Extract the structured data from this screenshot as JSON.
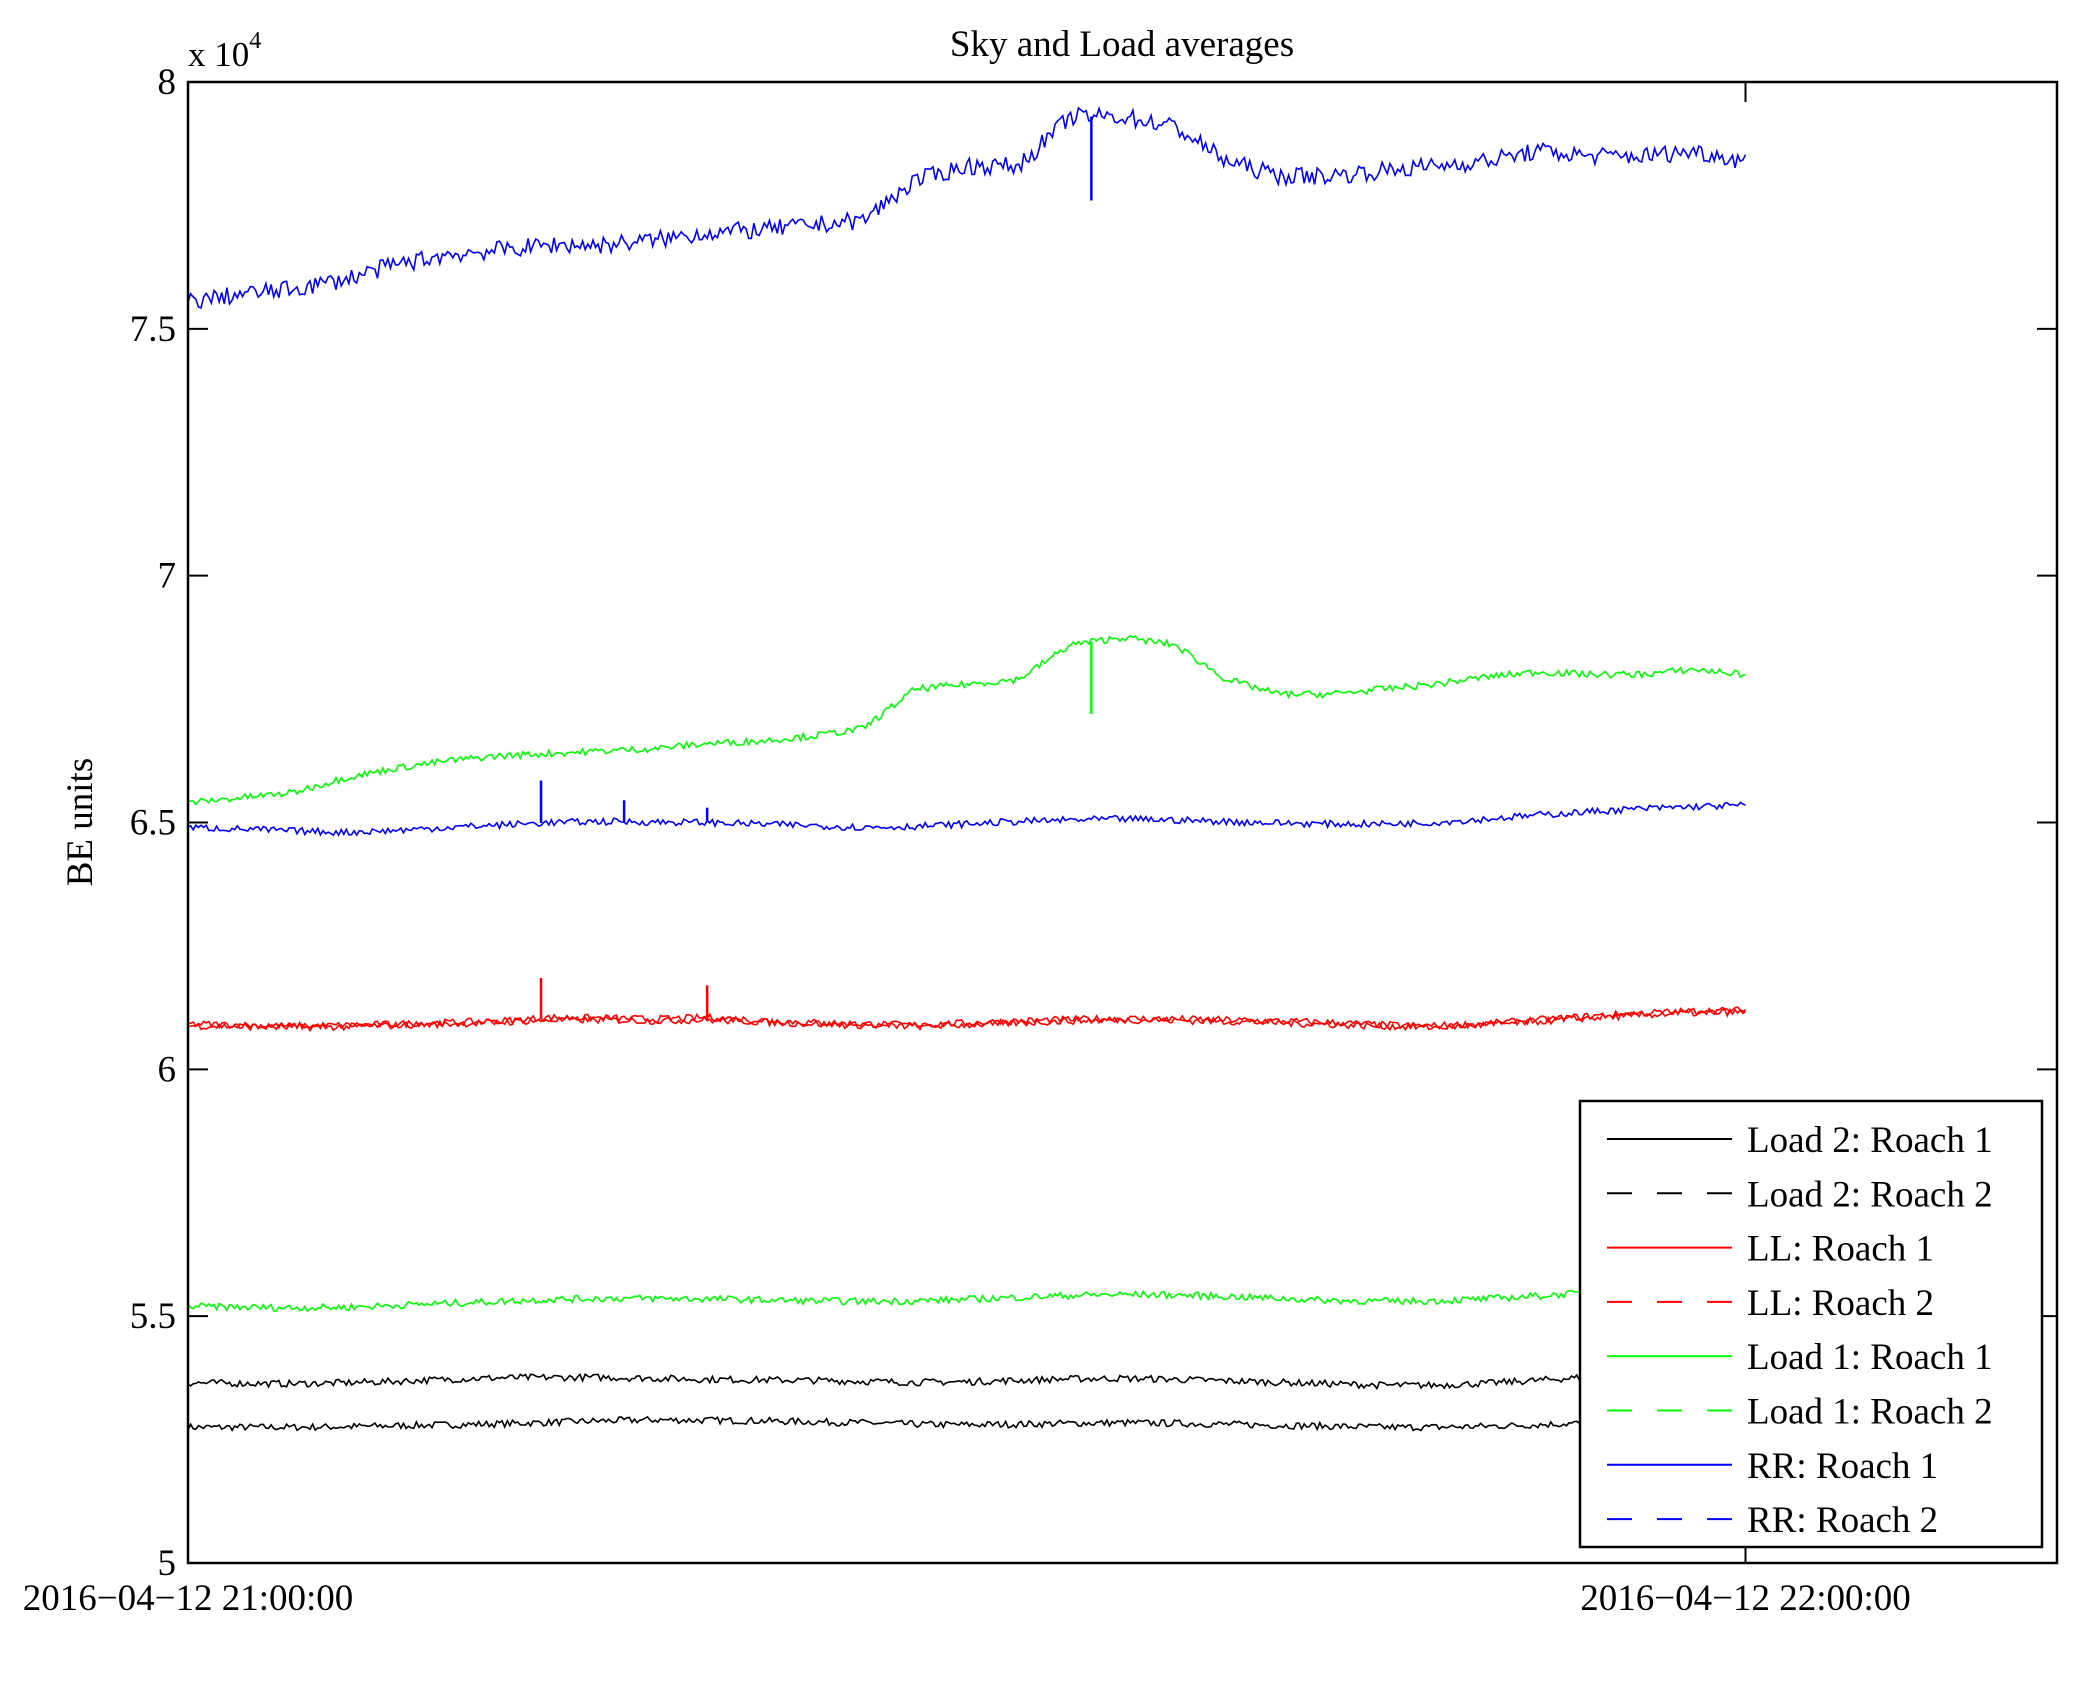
{
  "chart_data": {
    "type": "line",
    "title": "Sky and Load averages",
    "xlabel": "",
    "ylabel": "BE units",
    "y_multiplier_label": "x 10",
    "y_multiplier_exponent": "4",
    "ylim": [
      5,
      8
    ],
    "yticks": [
      5,
      5.5,
      6,
      6.5,
      7,
      7.5,
      8
    ],
    "ytick_labels": [
      "5",
      "5.5",
      "6",
      "6.5",
      "7",
      "7.5",
      "8"
    ],
    "x_unit": "minutes since 2016-04-12 21:00:00",
    "xlim": [
      0,
      72
    ],
    "xticks": [
      0,
      60
    ],
    "xtick_labels": [
      "2016−04−12 21:00:00",
      "2016−04−12 22:00:00"
    ],
    "legend_position": "bottom-right",
    "grid": false,
    "x": [
      0,
      2,
      4,
      6,
      8,
      10,
      12,
      14,
      16,
      18,
      20,
      22,
      24,
      26,
      28,
      30,
      32,
      34,
      36,
      38,
      40,
      42,
      44,
      46,
      48,
      50,
      52,
      54,
      56,
      58,
      60
    ],
    "series": [
      {
        "name": "Load 2: Roach 1",
        "color": "#000000",
        "dash": false,
        "values": [
          5.275,
          5.275,
          5.275,
          5.276,
          5.278,
          5.28,
          5.282,
          5.285,
          5.288,
          5.29,
          5.289,
          5.288,
          5.286,
          5.284,
          5.281,
          5.28,
          5.281,
          5.283,
          5.284,
          5.283,
          5.281,
          5.279,
          5.277,
          5.275,
          5.275,
          5.277,
          5.28,
          5.284,
          5.287,
          5.289,
          5.29
        ]
      },
      {
        "name": "Load 2: Roach 2",
        "color": "#000000",
        "dash": true,
        "values": [
          5.365,
          5.364,
          5.363,
          5.365,
          5.368,
          5.372,
          5.375,
          5.376,
          5.376,
          5.374,
          5.372,
          5.371,
          5.37,
          5.368,
          5.366,
          5.367,
          5.37,
          5.373,
          5.374,
          5.372,
          5.369,
          5.366,
          5.363,
          5.36,
          5.36,
          5.364,
          5.37,
          5.377,
          5.381,
          5.382,
          5.382
        ]
      },
      {
        "name": "LL: Roach 1",
        "color": "#ff0000",
        "dash": false,
        "values": [
          6.092,
          6.09,
          6.088,
          6.089,
          6.092,
          6.095,
          6.098,
          6.105,
          6.104,
          6.102,
          6.105,
          6.1,
          6.095,
          6.092,
          6.09,
          6.094,
          6.098,
          6.101,
          6.103,
          6.102,
          6.1,
          6.098,
          6.095,
          6.09,
          6.088,
          6.093,
          6.1,
          6.108,
          6.114,
          6.118,
          6.12
        ]
      },
      {
        "name": "LL: Roach 2",
        "color": "#ff0000",
        "dash": true,
        "values": [
          6.088,
          6.087,
          6.085,
          6.086,
          6.089,
          6.092,
          6.095,
          6.1,
          6.1,
          6.098,
          6.1,
          6.096,
          6.092,
          6.089,
          6.087,
          6.09,
          6.094,
          6.098,
          6.1,
          6.099,
          6.097,
          6.094,
          6.091,
          6.087,
          6.085,
          6.09,
          6.097,
          6.104,
          6.11,
          6.114,
          6.116
        ]
      },
      {
        "name": "Load 1: Roach 1",
        "color": "#00ff00",
        "dash": false,
        "values": [
          5.52,
          5.518,
          5.517,
          5.518,
          5.522,
          5.526,
          5.53,
          5.534,
          5.536,
          5.536,
          5.535,
          5.533,
          5.531,
          5.53,
          5.531,
          5.534,
          5.538,
          5.542,
          5.544,
          5.543,
          5.54,
          5.536,
          5.532,
          5.53,
          5.531,
          5.535,
          5.541,
          5.548,
          5.554,
          5.558,
          5.56
        ]
      },
      {
        "name": "Load 1: Roach 2",
        "color": "#00ff00",
        "dash": true,
        "values": [
          6.54,
          6.55,
          6.56,
          6.59,
          6.61,
          6.625,
          6.635,
          6.64,
          6.645,
          6.65,
          6.66,
          6.665,
          6.675,
          6.69,
          6.77,
          6.78,
          6.79,
          6.86,
          6.875,
          6.86,
          6.79,
          6.76,
          6.76,
          6.77,
          6.78,
          6.795,
          6.805,
          6.8,
          6.8,
          6.81,
          6.8
        ]
      },
      {
        "name": "RR: Roach 1",
        "color": "#0000ff",
        "dash": false,
        "values": [
          6.49,
          6.487,
          6.483,
          6.48,
          6.484,
          6.49,
          6.495,
          6.5,
          6.502,
          6.501,
          6.5,
          6.497,
          6.494,
          6.49,
          6.492,
          6.497,
          6.502,
          6.505,
          6.507,
          6.505,
          6.502,
          6.499,
          6.497,
          6.497,
          6.5,
          6.507,
          6.515,
          6.522,
          6.528,
          6.532,
          6.535
        ]
      },
      {
        "name": "RR: Roach 2",
        "color": "#0000ff",
        "dash": true,
        "values": [
          7.555,
          7.57,
          7.58,
          7.6,
          7.63,
          7.65,
          7.66,
          7.67,
          7.67,
          7.68,
          7.695,
          7.7,
          7.71,
          7.72,
          7.8,
          7.83,
          7.83,
          7.93,
          7.93,
          7.91,
          7.84,
          7.81,
          7.81,
          7.82,
          7.83,
          7.84,
          7.86,
          7.85,
          7.85,
          7.86,
          7.84
        ]
      }
    ],
    "spikes": [
      {
        "series": "RR: Roach 1",
        "x": 13.6,
        "value": 6.585
      },
      {
        "series": "RR: Roach 1",
        "x": 16.8,
        "value": 6.545
      },
      {
        "series": "RR: Roach 1",
        "x": 20,
        "value": 6.53
      },
      {
        "series": "LL: Roach 1",
        "x": 13.6,
        "value": 6.185
      },
      {
        "series": "LL: Roach 1",
        "x": 20,
        "value": 6.17
      },
      {
        "series": "RR: Roach 2",
        "x": 34.8,
        "value": 7.76
      },
      {
        "series": "Load 1: Roach 2",
        "x": 34.8,
        "value": 6.72
      }
    ]
  }
}
